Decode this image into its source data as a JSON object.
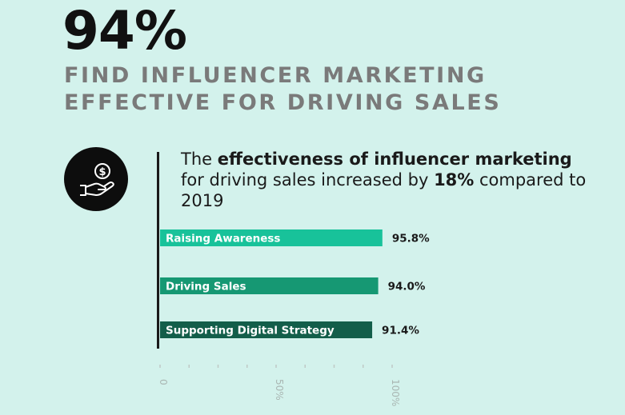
{
  "header": {
    "stat": "94%",
    "line1": "FIND INFLUENCER MARKETING",
    "line2": "EFFECTIVE FOR DRIVING SALES"
  },
  "description": {
    "part1": "The ",
    "bold1": "effectiveness of influencer marketing",
    "part2": " for driving sales increased by ",
    "bold2": "18%",
    "part3": " compared to 2019"
  },
  "colors": {
    "background": "#d3f2ec",
    "bars": [
      "#18c29a",
      "#169873",
      "#135e4a"
    ],
    "headline": "#7a7a7a"
  },
  "icon": {
    "name": "hand-money-icon"
  },
  "chart_data": {
    "type": "bar",
    "orientation": "horizontal",
    "categories": [
      "Raising Awareness",
      "Driving Sales",
      "Supporting Digital Strategy"
    ],
    "values": [
      95.8,
      94.0,
      91.4
    ],
    "value_labels": [
      "95.8%",
      "94.0%",
      "91.4%"
    ],
    "xlim": [
      0,
      100
    ],
    "xticks": [
      0,
      50,
      100
    ],
    "xtick_labels": [
      "0",
      "50%",
      "100%"
    ],
    "grid": false
  }
}
